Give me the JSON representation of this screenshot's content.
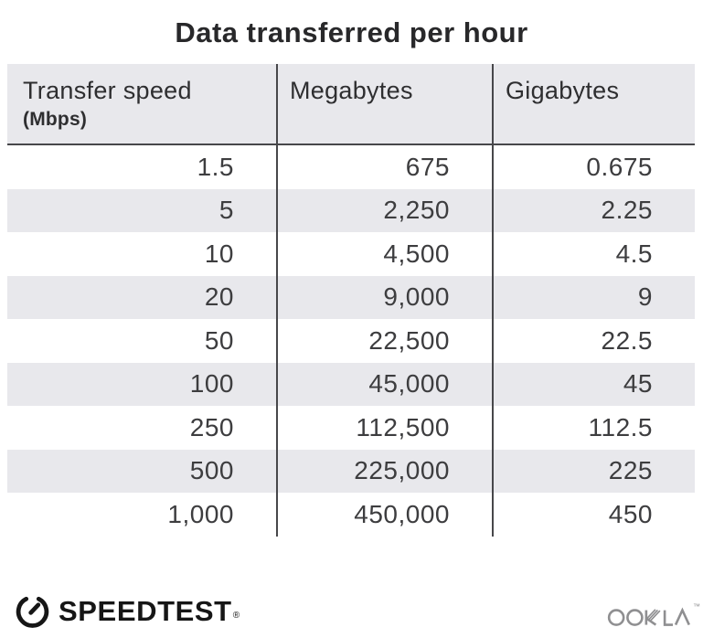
{
  "title": "Data transferred per hour",
  "chart_data": {
    "type": "table",
    "title": "Data transferred per hour",
    "columns": [
      "Transfer speed (Mbps)",
      "Megabytes",
      "Gigabytes"
    ],
    "rows": [
      [
        "1.5",
        "675",
        "0.675"
      ],
      [
        "5",
        "2,250",
        "2.25"
      ],
      [
        "10",
        "4,500",
        "4.5"
      ],
      [
        "20",
        "9,000",
        "9"
      ],
      [
        "50",
        "22,500",
        "22.5"
      ],
      [
        "100",
        "45,000",
        "45"
      ],
      [
        "250",
        "112,500",
        "112.5"
      ],
      [
        "500",
        "225,000",
        "225"
      ],
      [
        "1,000",
        "450,000",
        "450"
      ]
    ],
    "layout": {
      "striped_rows": true,
      "column_dividers": true,
      "value_alignment": "right"
    }
  },
  "table": {
    "header": {
      "speed_label": "Transfer speed",
      "speed_unit": "(Mbps)",
      "megabytes_label": "Megabytes",
      "gigabytes_label": "Gigabytes"
    },
    "rows": [
      {
        "speed": "1.5",
        "megabytes": "675",
        "gigabytes": "0.675"
      },
      {
        "speed": "5",
        "megabytes": "2,250",
        "gigabytes": "2.25"
      },
      {
        "speed": "10",
        "megabytes": "4,500",
        "gigabytes": "4.5"
      },
      {
        "speed": "20",
        "megabytes": "9,000",
        "gigabytes": "9"
      },
      {
        "speed": "50",
        "megabytes": "22,500",
        "gigabytes": "22.5"
      },
      {
        "speed": "100",
        "megabytes": "45,000",
        "gigabytes": "45"
      },
      {
        "speed": "250",
        "megabytes": "112,500",
        "gigabytes": "112.5"
      },
      {
        "speed": "500",
        "megabytes": "225,000",
        "gigabytes": "225"
      },
      {
        "speed": "1,000",
        "megabytes": "450,000",
        "gigabytes": "450"
      }
    ]
  },
  "footer": {
    "speedtest_label": "SPEEDTEST",
    "speedtest_mark": "®",
    "ookla_label": "OOKLA",
    "ookla_mark": "™"
  },
  "colors": {
    "title_text": "#28282a",
    "header_bg": "#e8e8ec",
    "row_alt_bg": "#e8e8ec",
    "divider": "#47474a",
    "header_text": "#2e2e30",
    "body_text": "#3d3d3f",
    "speedtest_black": "#161616",
    "ookla_gray": "#8f8f91"
  }
}
